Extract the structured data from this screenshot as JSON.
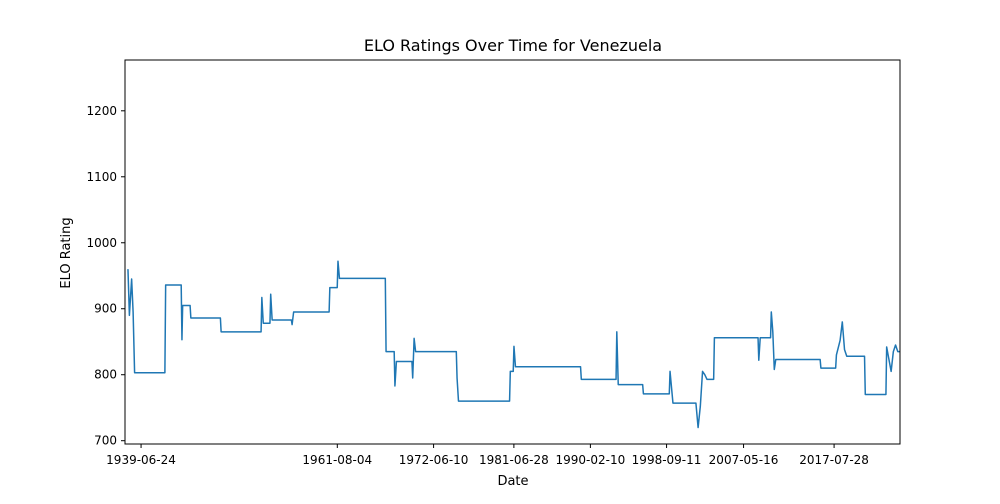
{
  "chart_data": {
    "type": "line",
    "title": "ELO Ratings Over Time for Venezuela",
    "xlabel": "Date",
    "ylabel": "ELO Rating",
    "grid": false,
    "legend": "none",
    "line_color": "#1f77b4",
    "x_range": [
      "1937-09-01",
      "2024-12-31"
    ],
    "ylim": [
      695,
      1277
    ],
    "x_ticks": [
      {
        "date": "1939-06-24",
        "label": "1939-06-24"
      },
      {
        "date": "1961-08-04",
        "label": "1961-08-04"
      },
      {
        "date": "1972-06-10",
        "label": "1972-06-10"
      },
      {
        "date": "1981-06-28",
        "label": "1981-06-28"
      },
      {
        "date": "1990-02-10",
        "label": "1990-02-10"
      },
      {
        "date": "1998-09-11",
        "label": "1998-09-11"
      },
      {
        "date": "2007-05-16",
        "label": "2007-05-16"
      },
      {
        "date": "2017-07-28",
        "label": "2017-07-28"
      }
    ],
    "y_ticks": [
      700,
      800,
      900,
      1000,
      1100,
      1200
    ],
    "series": [
      {
        "points": [
          [
            "1938-01-01",
            960
          ],
          [
            "1938-03-01",
            890
          ],
          [
            "1938-06-01",
            945
          ],
          [
            "1938-08-01",
            895
          ],
          [
            "1938-10-01",
            803
          ],
          [
            "1942-03-01",
            803
          ],
          [
            "1942-04-01",
            936
          ],
          [
            "1944-01-01",
            936
          ],
          [
            "1944-02-01",
            853
          ],
          [
            "1944-03-01",
            905
          ],
          [
            "1945-01-01",
            905
          ],
          [
            "1945-02-01",
            886
          ],
          [
            "1948-06-01",
            886
          ],
          [
            "1948-07-01",
            865
          ],
          [
            "1953-01-01",
            865
          ],
          [
            "1953-02-01",
            917
          ],
          [
            "1953-04-01",
            878
          ],
          [
            "1954-01-01",
            878
          ],
          [
            "1954-02-01",
            922
          ],
          [
            "1954-04-01",
            883
          ],
          [
            "1956-06-01",
            883
          ],
          [
            "1956-07-01",
            876
          ],
          [
            "1956-09-01",
            895
          ],
          [
            "1960-09-01",
            895
          ],
          [
            "1960-10-01",
            932
          ],
          [
            "1961-08-01",
            932
          ],
          [
            "1961-09-01",
            972
          ],
          [
            "1961-11-01",
            946
          ],
          [
            "1967-01-01",
            946
          ],
          [
            "1967-02-01",
            835
          ],
          [
            "1968-01-01",
            835
          ],
          [
            "1968-02-01",
            783
          ],
          [
            "1968-04-01",
            820
          ],
          [
            "1970-01-01",
            820
          ],
          [
            "1970-02-01",
            795
          ],
          [
            "1970-04-01",
            855
          ],
          [
            "1970-06-01",
            835
          ],
          [
            "1975-01-01",
            835
          ],
          [
            "1975-02-01",
            795
          ],
          [
            "1975-04-01",
            760
          ],
          [
            "1981-01-01",
            760
          ],
          [
            "1981-02-01",
            805
          ],
          [
            "1981-06-01",
            805
          ],
          [
            "1981-07-01",
            843
          ],
          [
            "1981-09-01",
            812
          ],
          [
            "1989-01-01",
            812
          ],
          [
            "1989-02-01",
            793
          ],
          [
            "1993-01-01",
            793
          ],
          [
            "1993-02-01",
            865
          ],
          [
            "1993-04-01",
            785
          ],
          [
            "1996-01-01",
            785
          ],
          [
            "1996-02-01",
            771
          ],
          [
            "1999-01-01",
            771
          ],
          [
            "1999-02-01",
            805
          ],
          [
            "1999-06-01",
            757
          ],
          [
            "2002-01-01",
            757
          ],
          [
            "2002-04-01",
            720
          ],
          [
            "2002-07-01",
            752
          ],
          [
            "2002-10-01",
            805
          ],
          [
            "2003-01-01",
            800
          ],
          [
            "2003-04-01",
            793
          ],
          [
            "2004-01-01",
            793
          ],
          [
            "2004-02-01",
            856
          ],
          [
            "2009-01-01",
            856
          ],
          [
            "2009-02-01",
            822
          ],
          [
            "2009-04-01",
            856
          ],
          [
            "2010-06-01",
            856
          ],
          [
            "2010-07-01",
            895
          ],
          [
            "2010-09-01",
            865
          ],
          [
            "2010-11-01",
            808
          ],
          [
            "2011-01-01",
            823
          ],
          [
            "2016-01-01",
            823
          ],
          [
            "2016-02-01",
            810
          ],
          [
            "2017-10-01",
            810
          ],
          [
            "2017-11-01",
            830
          ],
          [
            "2018-04-01",
            852
          ],
          [
            "2018-07-01",
            880
          ],
          [
            "2018-10-01",
            838
          ],
          [
            "2019-01-01",
            828
          ],
          [
            "2021-01-01",
            828
          ],
          [
            "2021-02-01",
            770
          ],
          [
            "2023-06-01",
            770
          ],
          [
            "2023-07-01",
            842
          ],
          [
            "2024-01-01",
            805
          ],
          [
            "2024-04-01",
            835
          ],
          [
            "2024-07-01",
            845
          ],
          [
            "2024-10-01",
            835
          ],
          [
            "2024-12-31",
            835
          ]
        ]
      }
    ]
  }
}
